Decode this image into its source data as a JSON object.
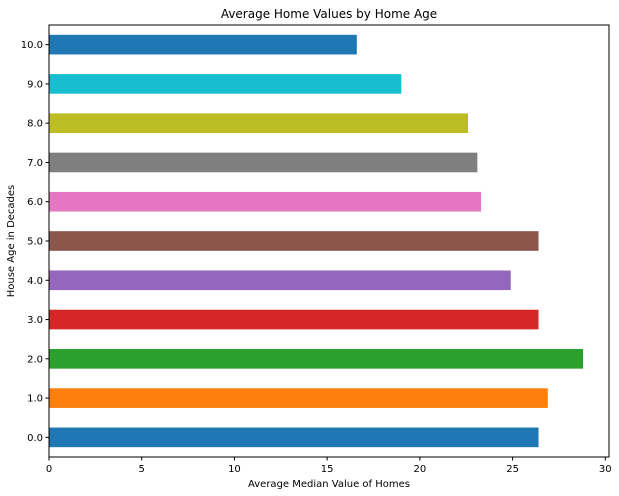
{
  "chart_data": {
    "type": "bar",
    "orientation": "horizontal",
    "title": "Average Home Values by Home Age",
    "xlabel": "Average Median Value of Homes",
    "ylabel": "House Age in Decades",
    "categories": [
      "0.0",
      "1.0",
      "2.0",
      "3.0",
      "4.0",
      "5.0",
      "6.0",
      "7.0",
      "8.0",
      "9.0",
      "10.0"
    ],
    "values": [
      26.4,
      26.9,
      28.8,
      26.4,
      24.9,
      26.4,
      23.3,
      23.1,
      22.6,
      19.0,
      16.6
    ],
    "bar_colors": [
      "#1f77b4",
      "#ff7f0e",
      "#2ca02c",
      "#d62728",
      "#9467bd",
      "#8c564b",
      "#e377c2",
      "#7f7f7f",
      "#bcbd22",
      "#17becf",
      "#1f77b4"
    ],
    "xlim": [
      0,
      30.2
    ],
    "xticks": [
      0,
      5,
      10,
      15,
      20,
      25,
      30
    ],
    "xtick_labels": [
      "0",
      "5",
      "10",
      "15",
      "20",
      "25",
      "30"
    ],
    "grid": false,
    "legend": "none"
  }
}
